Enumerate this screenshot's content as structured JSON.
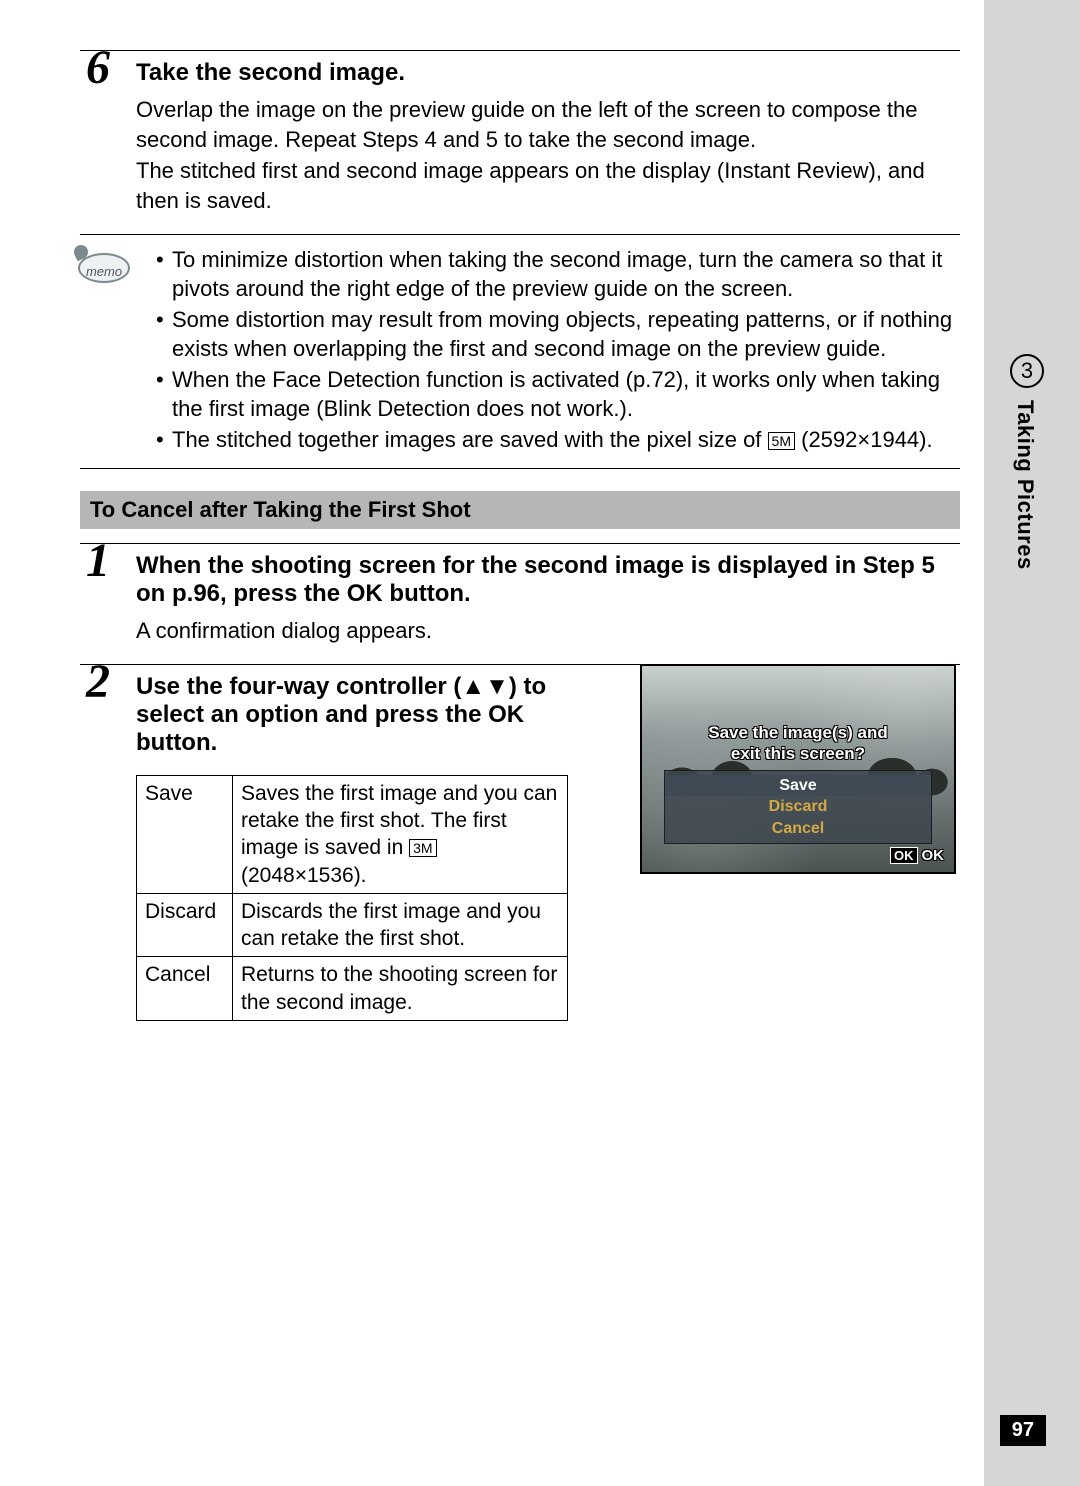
{
  "sidebar": {
    "chapter_number": "3",
    "chapter_title": "Taking Pictures",
    "page_number": "97"
  },
  "step6": {
    "number": "6",
    "title": "Take the second image.",
    "p1": "Overlap the image on the preview guide on the left of the screen to compose the second image. Repeat Steps 4 and 5 to take the second image.",
    "p2": "The stitched first and second image appears on the display (Instant Review), and then is saved."
  },
  "memo": {
    "label": "memo",
    "items": [
      "To minimize distortion when taking the second image, turn the camera so that it pivots around the right edge of the preview guide on the screen.",
      "Some distortion may result from moving objects, repeating patterns, or if nothing exists when overlapping the first and second image on the preview guide.",
      "When the Face Detection function is activated (p.72), it works only when taking the first image (Blink Detection does not work.).",
      "The stitched together images are saved with the pixel size of "
    ],
    "size_badge": "5M",
    "size_dims": " (2592×1944)."
  },
  "subheader": "To Cancel after Taking the First Shot",
  "step1": {
    "number": "1",
    "title_a": "When the shooting screen for the second image is displayed in Step 5 on p.96, press the ",
    "title_ok": "OK",
    "title_b": " button.",
    "p": "A confirmation dialog appears."
  },
  "step2": {
    "number": "2",
    "title_a": "Use the four-way controller (▲▼) to select an option and press the ",
    "title_ok": "OK",
    "title_b": " button."
  },
  "options": {
    "rows": [
      {
        "name": "Save",
        "desc_a": "Saves the first image and you can retake the first shot. The first image is saved in ",
        "badge": "3M",
        "desc_b": " (2048×1536)."
      },
      {
        "name": "Discard",
        "desc_a": "Discards the first image and you can retake the first shot.",
        "badge": "",
        "desc_b": ""
      },
      {
        "name": "Cancel",
        "desc_a": "Returns to the shooting screen for the second image.",
        "badge": "",
        "desc_b": ""
      }
    ]
  },
  "dialog": {
    "line1": "Save the image(s) and",
    "line2": "exit this screen?",
    "opt_save": "Save",
    "opt_discard": "Discard",
    "opt_cancel": "Cancel",
    "ok_badge": "OK",
    "ok_label": "OK"
  }
}
